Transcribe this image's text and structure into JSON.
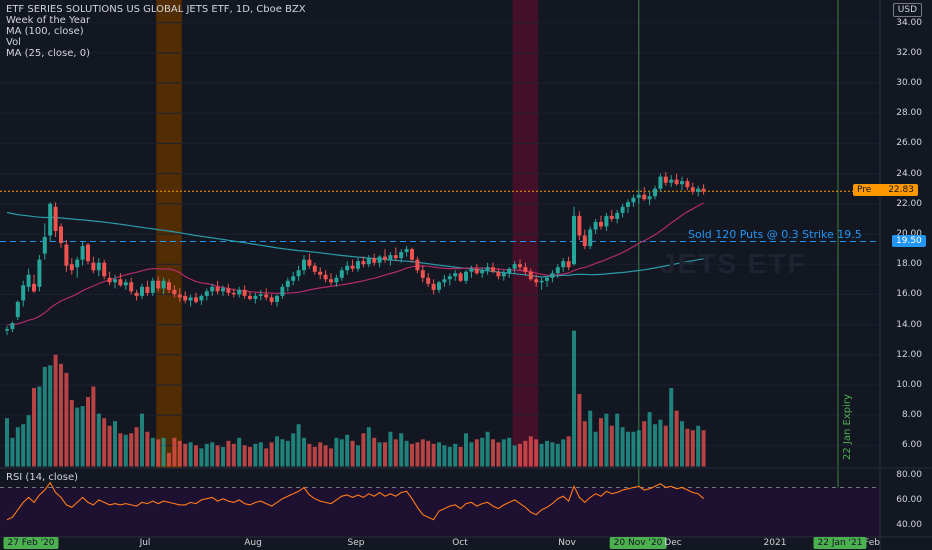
{
  "legend": {
    "title": "ETF SERIES SOLUTIONS US GLOBAL JETS ETF, 1D, Cboe BZX",
    "lines": [
      "Week of the Year",
      "MA (100, close)",
      "Vol",
      "MA (25, close, 0)"
    ]
  },
  "currency": "USD",
  "price_axis": [
    "34.00",
    "32.00",
    "30.00",
    "28.00",
    "26.00",
    "24.00",
    "22.00",
    "20.00",
    "18.00",
    "16.00",
    "14.00",
    "12.00",
    "10.00",
    "8.00",
    "6.00"
  ],
  "rsi_axis": [
    "80.00",
    "60.00",
    "40.00"
  ],
  "rsi_legend": "RSI (14, close)",
  "price_badges": {
    "pre_label": "Pre",
    "pre_value": "22.83",
    "line_value": "19.50"
  },
  "annotation": "Sold 120 Puts @ 0.3 Strike 19.5",
  "watermark": "JETS ETF",
  "vertical_note": "22 Jan Expiry",
  "x_axis": {
    "labels": [
      "Jul",
      "Aug",
      "Sep",
      "Oct",
      "Nov",
      "Dec",
      "2021",
      "Feb"
    ],
    "start_badge": "27 Feb '20",
    "mid_badge": "20 Nov '20",
    "end_badge": "22 Jan '21"
  },
  "colors": {
    "background": "#131722",
    "up": "#26a69a",
    "down": "#ef5350",
    "ma100": "#2a9aa8",
    "ma25": "#b02c66",
    "rsi": "#ff7a1a",
    "pre_orange": "#ff9800",
    "blue_line": "#2196f3",
    "green_marker": "#4caf50"
  },
  "chart_data": {
    "type": "candlestick",
    "y_range": [
      4.5,
      35.5
    ],
    "rsi_range": [
      30,
      85
    ],
    "sessions": 130,
    "highlight_bands": [
      {
        "name": "orange-band",
        "from": 28,
        "to": 32,
        "color": "#5a3000"
      },
      {
        "name": "purple-band",
        "from": 94,
        "to": 98,
        "color": "#4a0f2a"
      }
    ],
    "reference_lines": {
      "pre_close": 22.83,
      "put_strike": 19.5
    },
    "candles": [
      [
        13.6,
        13.9,
        13.3,
        13.7
      ],
      [
        13.7,
        14.2,
        13.5,
        14.1
      ],
      [
        14.5,
        15.6,
        14.3,
        15.5
      ],
      [
        15.6,
        16.9,
        15.2,
        16.6
      ],
      [
        16.5,
        17.7,
        16.2,
        17.3
      ],
      [
        16.7,
        17.3,
        16.1,
        16.2
      ],
      [
        16.5,
        18.6,
        16.2,
        18.3
      ],
      [
        18.7,
        20.7,
        18.3,
        19.8
      ],
      [
        19.9,
        22.1,
        19.5,
        22.0
      ],
      [
        21.8,
        22.1,
        19.8,
        20.2
      ],
      [
        20.5,
        20.7,
        19.1,
        19.4
      ],
      [
        19.3,
        19.6,
        17.5,
        17.9
      ],
      [
        18.0,
        18.4,
        17.3,
        17.6
      ],
      [
        17.8,
        18.5,
        17.1,
        18.3
      ],
      [
        18.3,
        19.5,
        17.9,
        19.2
      ],
      [
        19.3,
        19.4,
        18.0,
        18.2
      ],
      [
        18.1,
        18.5,
        17.4,
        17.6
      ],
      [
        17.6,
        18.4,
        17.2,
        18.1
      ],
      [
        18.1,
        18.3,
        17.0,
        17.2
      ],
      [
        17.1,
        17.5,
        16.6,
        16.8
      ],
      [
        16.8,
        17.3,
        16.4,
        17.0
      ],
      [
        17.0,
        17.4,
        16.5,
        16.6
      ],
      [
        16.6,
        17.0,
        16.3,
        16.8
      ],
      [
        16.8,
        17.1,
        16.0,
        16.2
      ],
      [
        16.1,
        16.3,
        15.6,
        15.9
      ],
      [
        15.9,
        16.7,
        15.7,
        16.5
      ],
      [
        16.5,
        16.9,
        15.9,
        16.1
      ],
      [
        16.1,
        17.1,
        15.9,
        16.9
      ],
      [
        16.9,
        17.2,
        16.2,
        16.4
      ],
      [
        16.4,
        17.1,
        16.0,
        16.9
      ],
      [
        16.8,
        17.0,
        16.1,
        16.3
      ],
      [
        16.3,
        16.6,
        15.8,
        16.0
      ],
      [
        16.0,
        16.4,
        15.5,
        15.8
      ],
      [
        15.9,
        16.2,
        15.4,
        15.6
      ],
      [
        15.6,
        16.0,
        15.2,
        15.8
      ],
      [
        15.8,
        16.1,
        15.4,
        15.5
      ],
      [
        15.6,
        16.0,
        15.3,
        15.9
      ],
      [
        15.9,
        16.4,
        15.6,
        16.2
      ],
      [
        16.2,
        16.7,
        15.9,
        16.5
      ],
      [
        16.5,
        16.9,
        16.0,
        16.2
      ],
      [
        16.2,
        16.6,
        15.9,
        16.4
      ],
      [
        16.4,
        16.7,
        15.9,
        16.1
      ],
      [
        16.1,
        16.4,
        15.8,
        16.0
      ],
      [
        16.0,
        16.5,
        15.8,
        16.3
      ],
      [
        16.3,
        16.6,
        15.7,
        15.9
      ],
      [
        15.9,
        16.2,
        15.6,
        15.7
      ],
      [
        15.7,
        16.1,
        15.4,
        15.9
      ],
      [
        15.9,
        16.3,
        15.6,
        16.0
      ],
      [
        16.0,
        16.4,
        15.6,
        15.8
      ],
      [
        15.8,
        16.0,
        15.3,
        15.5
      ],
      [
        15.5,
        16.0,
        15.2,
        15.9
      ],
      [
        15.9,
        16.7,
        15.7,
        16.5
      ],
      [
        16.5,
        17.1,
        16.2,
        16.9
      ],
      [
        16.9,
        17.5,
        16.6,
        17.2
      ],
      [
        17.2,
        17.9,
        16.9,
        17.6
      ],
      [
        17.6,
        18.6,
        17.3,
        18.3
      ],
      [
        18.3,
        18.7,
        17.7,
        17.9
      ],
      [
        17.9,
        18.1,
        17.3,
        17.5
      ],
      [
        17.5,
        17.8,
        17.0,
        17.3
      ],
      [
        17.3,
        17.6,
        16.8,
        17.0
      ],
      [
        17.0,
        17.4,
        16.6,
        16.8
      ],
      [
        16.8,
        17.3,
        16.5,
        17.1
      ],
      [
        17.1,
        17.8,
        16.9,
        17.6
      ],
      [
        17.6,
        18.2,
        17.3,
        17.9
      ],
      [
        17.9,
        18.3,
        17.5,
        17.7
      ],
      [
        17.7,
        18.4,
        17.5,
        18.2
      ],
      [
        18.2,
        18.5,
        17.8,
        18.0
      ],
      [
        18.0,
        18.6,
        17.8,
        18.4
      ],
      [
        18.4,
        18.7,
        17.9,
        18.1
      ],
      [
        18.1,
        18.6,
        17.8,
        18.5
      ],
      [
        18.5,
        19.0,
        18.1,
        18.3
      ],
      [
        18.3,
        18.8,
        17.9,
        18.6
      ],
      [
        18.6,
        19.1,
        18.2,
        18.4
      ],
      [
        18.4,
        19.0,
        18.1,
        18.8
      ],
      [
        18.8,
        19.2,
        18.5,
        19.0
      ],
      [
        19.0,
        19.1,
        18.1,
        18.3
      ],
      [
        18.3,
        18.5,
        17.4,
        17.6
      ],
      [
        17.6,
        17.9,
        16.8,
        17.1
      ],
      [
        17.1,
        17.4,
        16.5,
        16.7
      ],
      [
        16.7,
        17.0,
        16.0,
        16.3
      ],
      [
        16.3,
        16.9,
        16.1,
        16.8
      ],
      [
        16.8,
        17.3,
        16.5,
        17.0
      ],
      [
        17.0,
        17.4,
        16.6,
        17.2
      ],
      [
        17.2,
        17.6,
        16.9,
        17.4
      ],
      [
        17.4,
        17.5,
        16.8,
        16.9
      ],
      [
        16.9,
        17.6,
        16.7,
        17.5
      ],
      [
        17.5,
        17.9,
        17.1,
        17.7
      ],
      [
        17.7,
        18.0,
        17.3,
        17.4
      ],
      [
        17.4,
        17.8,
        17.1,
        17.6
      ],
      [
        17.6,
        18.1,
        17.3,
        17.8
      ],
      [
        17.8,
        18.1,
        17.4,
        17.5
      ],
      [
        17.5,
        17.7,
        17.0,
        17.2
      ],
      [
        17.2,
        17.6,
        16.9,
        17.4
      ],
      [
        17.4,
        17.8,
        17.1,
        17.7
      ],
      [
        17.7,
        18.2,
        17.4,
        18.0
      ],
      [
        18.0,
        18.3,
        17.6,
        17.8
      ],
      [
        17.8,
        18.1,
        17.3,
        17.5
      ],
      [
        17.5,
        17.7,
        16.9,
        17.0
      ],
      [
        17.0,
        17.3,
        16.5,
        16.8
      ],
      [
        16.8,
        17.1,
        16.3,
        16.9
      ],
      [
        16.9,
        17.2,
        16.5,
        17.1
      ],
      [
        17.1,
        17.6,
        16.8,
        17.4
      ],
      [
        17.4,
        18.0,
        17.1,
        17.8
      ],
      [
        17.8,
        18.4,
        17.5,
        18.2
      ],
      [
        18.2,
        18.5,
        17.6,
        17.8
      ],
      [
        18.0,
        21.8,
        17.9,
        21.2
      ],
      [
        21.2,
        21.5,
        19.6,
        19.9
      ],
      [
        19.9,
        20.3,
        19.0,
        19.2
      ],
      [
        19.2,
        20.5,
        19.0,
        20.3
      ],
      [
        20.3,
        21.0,
        20.0,
        20.8
      ],
      [
        20.8,
        21.2,
        20.3,
        20.5
      ],
      [
        20.5,
        21.4,
        20.2,
        21.2
      ],
      [
        21.2,
        21.6,
        20.8,
        21.0
      ],
      [
        21.0,
        21.6,
        20.7,
        21.4
      ],
      [
        21.4,
        22.0,
        21.1,
        21.8
      ],
      [
        21.8,
        22.3,
        21.4,
        22.1
      ],
      [
        22.1,
        22.6,
        21.8,
        22.4
      ],
      [
        22.4,
        22.9,
        22.0,
        22.6
      ],
      [
        22.6,
        23.1,
        22.2,
        22.3
      ],
      [
        22.3,
        22.8,
        21.9,
        22.5
      ],
      [
        22.5,
        23.2,
        22.3,
        23.0
      ],
      [
        23.0,
        24.0,
        22.8,
        23.8
      ],
      [
        23.8,
        24.1,
        23.2,
        23.4
      ],
      [
        23.4,
        23.9,
        23.1,
        23.6
      ],
      [
        23.6,
        24.0,
        23.2,
        23.3
      ],
      [
        23.3,
        23.8,
        22.9,
        23.5
      ],
      [
        23.5,
        23.7,
        22.9,
        23.1
      ],
      [
        23.1,
        23.4,
        22.6,
        22.8
      ],
      [
        22.8,
        23.2,
        22.5,
        23.0
      ],
      [
        23.0,
        23.3,
        22.6,
        22.83
      ]
    ],
    "volume": [
      3.2,
      1.9,
      2.6,
      2.8,
      3.4,
      5.2,
      5.3,
      6.6,
      6.7,
      7.4,
      6.8,
      6.2,
      4.4,
      3.9,
      4.0,
      4.6,
      5.3,
      3.5,
      3.2,
      2.7,
      3.0,
      2.2,
      2.1,
      2.2,
      2.6,
      3.5,
      2.3,
      1.9,
      1.8,
      1.9,
      0.9,
      1.9,
      1.7,
      1.5,
      1.6,
      1.4,
      1.2,
      1.5,
      1.6,
      1.4,
      1.3,
      1.7,
      1.5,
      1.9,
      1.4,
      1.3,
      1.5,
      1.6,
      1.2,
      1.6,
      2.0,
      1.8,
      1.7,
      2.2,
      2.8,
      1.9,
      1.5,
      1.3,
      1.6,
      1.4,
      1.2,
      1.9,
      1.8,
      2.1,
      1.7,
      1.4,
      2.2,
      2.6,
      1.9,
      1.6,
      1.6,
      2.3,
      1.8,
      2.2,
      1.7,
      1.5,
      1.6,
      1.8,
      1.7,
      1.5,
      1.6,
      1.4,
      1.3,
      1.5,
      1.3,
      2.2,
      1.6,
      1.8,
      1.9,
      2.3,
      1.8,
      1.6,
      1.8,
      1.9,
      1.4,
      1.5,
      1.7,
      2.0,
      1.8,
      1.5,
      1.7,
      1.6,
      1.5,
      1.8,
      2.0,
      9.0,
      4.8,
      3.0,
      3.7,
      2.3,
      3.2,
      3.5,
      2.7,
      3.5,
      2.6,
      2.3,
      2.3,
      2.4,
      3.0,
      3.6,
      2.8,
      3.1,
      2.7,
      5.2,
      3.7,
      3.0,
      2.5,
      2.4,
      2.7,
      2.4
    ],
    "rsi": [
      44,
      46,
      52,
      58,
      62,
      58,
      64,
      68,
      74,
      66,
      62,
      56,
      54,
      58,
      62,
      58,
      56,
      60,
      58,
      56,
      57,
      56,
      57,
      56,
      55,
      58,
      57,
      59,
      57,
      59,
      58,
      57,
      56,
      56,
      58,
      57,
      60,
      61,
      62,
      59,
      61,
      59,
      58,
      60,
      57,
      56,
      58,
      59,
      57,
      55,
      58,
      61,
      63,
      65,
      67,
      70,
      64,
      61,
      59,
      58,
      57,
      60,
      63,
      64,
      62,
      64,
      62,
      65,
      63,
      66,
      63,
      65,
      63,
      66,
      67,
      61,
      54,
      48,
      46,
      44,
      51,
      53,
      55,
      56,
      53,
      57,
      58,
      55,
      57,
      58,
      55,
      53,
      56,
      58,
      60,
      57,
      54,
      50,
      48,
      52,
      54,
      57,
      61,
      63,
      59,
      71,
      62,
      58,
      62,
      65,
      63,
      67,
      65,
      66,
      68,
      69,
      70,
      71,
      68,
      69,
      71,
      73,
      70,
      71,
      69,
      70,
      68,
      66,
      65,
      61
    ]
  }
}
